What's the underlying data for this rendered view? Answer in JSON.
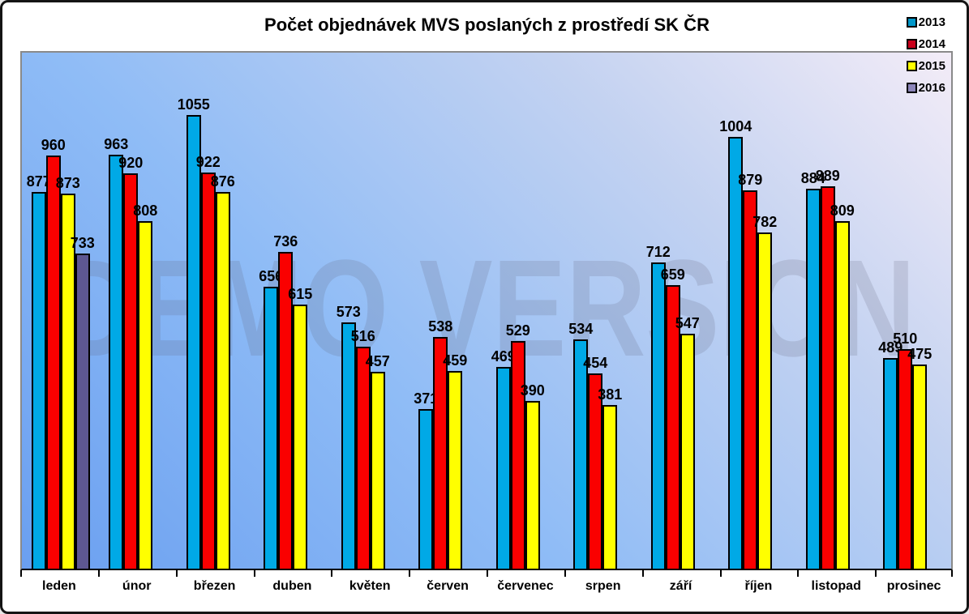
{
  "title": "Počet objednávek MVS poslaných z prostředí SK ČR",
  "watermark": "DEMO VERSION",
  "chart_data": {
    "type": "bar",
    "title": "Počet objednávek MVS poslaných z prostředí SK ČR",
    "xlabel": "",
    "ylabel": "",
    "ylim": [
      0,
      1200
    ],
    "grid": false,
    "legend_position": "top-right",
    "value_labels": true,
    "categories": [
      "leden",
      "únor",
      "březen",
      "duben",
      "květen",
      "červen",
      "červenec",
      "srpen",
      "září",
      "říjen",
      "listopad",
      "prosinec"
    ],
    "series": [
      {
        "name": "2013",
        "color": "#00A9E6",
        "legend_color": "#0097C9",
        "values": [
          877,
          963,
          1055,
          656,
          573,
          371,
          469,
          534,
          712,
          1004,
          884,
          489
        ]
      },
      {
        "name": "2014",
        "color": "#FA0000",
        "legend_color": "#C9001A",
        "values": [
          960,
          920,
          922,
          736,
          516,
          538,
          529,
          454,
          659,
          879,
          889,
          510
        ]
      },
      {
        "name": "2015",
        "color": "#FFFF00",
        "legend_color": "#FFFF00",
        "values": [
          873,
          808,
          876,
          615,
          457,
          459,
          390,
          381,
          547,
          782,
          809,
          475
        ]
      },
      {
        "name": "2016",
        "color": "#5D5792",
        "legend_color": "#8C85BA",
        "values": [
          733,
          null,
          null,
          null,
          null,
          null,
          null,
          null,
          null,
          null,
          null,
          null
        ]
      }
    ]
  },
  "colors": {
    "plot_border": "#8a8a8a",
    "axis": "#000000",
    "figure_border": "#141414",
    "background_bottom_left": "#6A9FF0",
    "background_top_right": "#F3ECF7",
    "watermark_gray": "#5F5F73"
  }
}
